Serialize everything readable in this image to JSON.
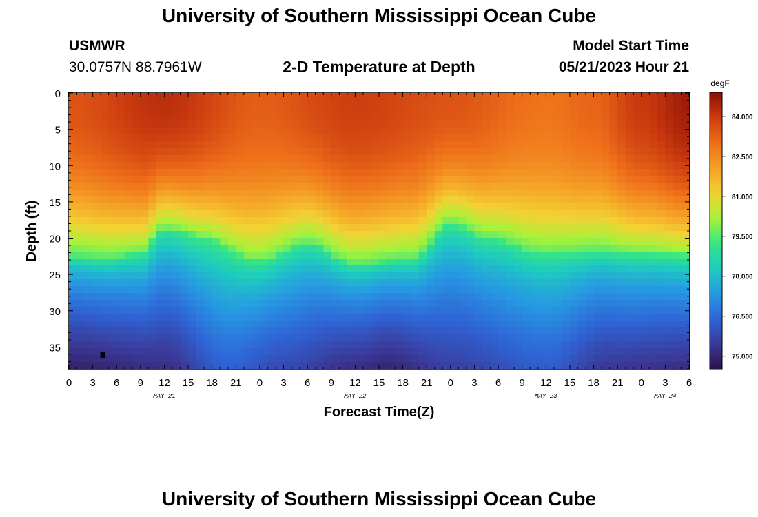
{
  "header": {
    "title": "University of Southern Mississippi Ocean Cube",
    "station": "USMWR",
    "coords": "30.0757N  88.7961W",
    "subtitle": "2-D Temperature at Depth",
    "model_start_label": "Model Start Time",
    "model_start_value": "05/21/2023 Hour 21"
  },
  "footer": {
    "title": "University of Southern Mississippi Ocean Cube"
  },
  "colors": {
    "palette": [
      "#2c1248",
      "#3b3896",
      "#2f64d6",
      "#2798e3",
      "#1ecbc0",
      "#35e585",
      "#a8f23a",
      "#f3d133",
      "#f5a026",
      "#ee6e1a",
      "#cc3b0f",
      "#8a0f05"
    ]
  },
  "chart_data": {
    "type": "heatmap",
    "title": "2-D Temperature at Depth",
    "xlabel": "Forecast Time(Z)",
    "ylabel": "Depth (ft)",
    "ylim": [
      0,
      38
    ],
    "y_ticks": [
      0,
      5,
      10,
      15,
      20,
      25,
      30,
      35
    ],
    "x_range_hours": [
      0,
      78
    ],
    "x_tick_labels": [
      "0",
      "3",
      "6",
      "9",
      "12",
      "15",
      "18",
      "21",
      "0",
      "3",
      "6",
      "9",
      "12",
      "15",
      "18",
      "21",
      "0",
      "3",
      "6",
      "9",
      "12",
      "15",
      "18",
      "21",
      "0",
      "3",
      "6"
    ],
    "date_labels": [
      {
        "label": "MAY 21",
        "hour": 12
      },
      {
        "label": "MAY 22",
        "hour": 36
      },
      {
        "label": "MAY 23",
        "hour": 60
      },
      {
        "label": "MAY 24",
        "hour": 75
      }
    ],
    "colorbar": {
      "units": "degF",
      "min": 74.5,
      "max": 84.9,
      "ticks": [
        "84.000",
        "82.500",
        "81.000",
        "79.500",
        "78.000",
        "76.500",
        "75.000"
      ]
    },
    "thermocline_depth_ft": {
      "hours": [
        0,
        4,
        9,
        12,
        17,
        24,
        30,
        36,
        43,
        48,
        53,
        60,
        66,
        72,
        78
      ],
      "depth": [
        22.8,
        23.0,
        22.0,
        18.5,
        19.5,
        23.0,
        20.5,
        23.5,
        23.0,
        18.0,
        20.0,
        22.0,
        22.0,
        22.0,
        22.0
      ]
    },
    "surface_temp_degF": {
      "hours": [
        0,
        12,
        24,
        36,
        48,
        60,
        66,
        72,
        78
      ],
      "temp": [
        83.5,
        84.2,
        83.3,
        83.9,
        83.5,
        82.9,
        83.2,
        84.0,
        84.6
      ]
    },
    "bottom_temp_degF": {
      "hours": [
        0,
        12,
        20,
        27,
        36,
        40,
        48,
        60,
        68,
        78
      ],
      "temp": [
        74.9,
        75.2,
        76.3,
        75.8,
        75.2,
        75.0,
        75.6,
        76.2,
        75.4,
        75.2
      ]
    },
    "marker": {
      "hour": 4.3,
      "depth_ft": 36
    }
  }
}
